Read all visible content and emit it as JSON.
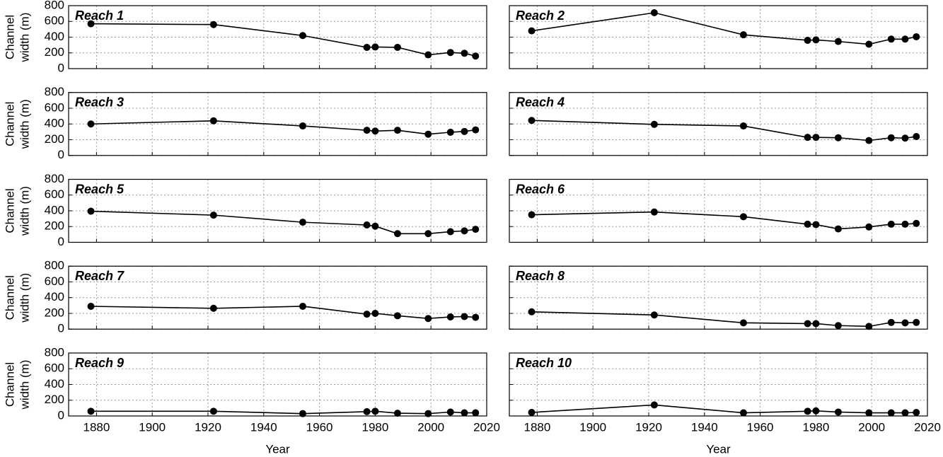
{
  "chart_data": [
    {
      "type": "line",
      "title": "Reach 1",
      "ylabel": [
        "Channel",
        "width (m)"
      ],
      "x": [
        1878,
        1922,
        1954,
        1977,
        1980,
        1988,
        1999,
        2007,
        2012,
        2016
      ],
      "values": [
        570,
        560,
        420,
        270,
        275,
        270,
        175,
        205,
        195,
        160
      ],
      "color": "#000000",
      "xlim": [
        1870,
        2020
      ],
      "ylim": [
        0,
        800
      ],
      "xticks": [
        1880,
        1900,
        1920,
        1940,
        1960,
        1980,
        2000,
        2020
      ],
      "yticks": [
        0,
        200,
        400,
        600,
        800
      ],
      "grid": true
    },
    {
      "type": "line",
      "title": "Reach 2",
      "x": [
        1878,
        1922,
        1954,
        1977,
        1980,
        1988,
        1999,
        2007,
        2012,
        2016
      ],
      "values": [
        480,
        710,
        430,
        360,
        365,
        345,
        310,
        375,
        375,
        405
      ],
      "color": "#000000",
      "xlim": [
        1870,
        2020
      ],
      "ylim": [
        0,
        800
      ],
      "xticks": [
        1880,
        1900,
        1920,
        1940,
        1960,
        1980,
        2000,
        2020
      ],
      "yticks": [
        0,
        200,
        400,
        600,
        800
      ],
      "grid": true
    },
    {
      "type": "line",
      "title": "Reach 3",
      "ylabel": [
        "Channel",
        "width (m)"
      ],
      "x": [
        1878,
        1922,
        1954,
        1977,
        1980,
        1988,
        1999,
        2007,
        2012,
        2016
      ],
      "values": [
        400,
        440,
        375,
        320,
        310,
        320,
        270,
        295,
        305,
        325
      ],
      "color": "#000000",
      "xlim": [
        1870,
        2020
      ],
      "ylim": [
        0,
        800
      ],
      "xticks": [
        1880,
        1900,
        1920,
        1940,
        1960,
        1980,
        2000,
        2020
      ],
      "yticks": [
        0,
        200,
        400,
        600,
        800
      ],
      "grid": true
    },
    {
      "type": "line",
      "title": "Reach 4",
      "x": [
        1878,
        1922,
        1954,
        1977,
        1980,
        1988,
        1999,
        2007,
        2012,
        2016
      ],
      "values": [
        445,
        395,
        375,
        230,
        230,
        225,
        190,
        225,
        220,
        240
      ],
      "color": "#000000",
      "xlim": [
        1870,
        2020
      ],
      "ylim": [
        0,
        800
      ],
      "xticks": [
        1880,
        1900,
        1920,
        1940,
        1960,
        1980,
        2000,
        2020
      ],
      "yticks": [
        0,
        200,
        400,
        600,
        800
      ],
      "grid": true
    },
    {
      "type": "line",
      "title": "Reach 5",
      "ylabel": [
        "Channel",
        "width (m)"
      ],
      "x": [
        1878,
        1922,
        1954,
        1977,
        1980,
        1988,
        1999,
        2007,
        2012,
        2016
      ],
      "values": [
        395,
        345,
        255,
        220,
        205,
        110,
        110,
        135,
        145,
        165
      ],
      "color": "#000000",
      "xlim": [
        1870,
        2020
      ],
      "ylim": [
        0,
        800
      ],
      "xticks": [
        1880,
        1900,
        1920,
        1940,
        1960,
        1980,
        2000,
        2020
      ],
      "yticks": [
        0,
        200,
        400,
        600,
        800
      ],
      "grid": true
    },
    {
      "type": "line",
      "title": "Reach 6",
      "x": [
        1878,
        1922,
        1954,
        1977,
        1980,
        1988,
        1999,
        2007,
        2012,
        2016
      ],
      "values": [
        350,
        385,
        325,
        230,
        225,
        170,
        195,
        230,
        230,
        240
      ],
      "color": "#000000",
      "xlim": [
        1870,
        2020
      ],
      "ylim": [
        0,
        800
      ],
      "xticks": [
        1880,
        1900,
        1920,
        1940,
        1960,
        1980,
        2000,
        2020
      ],
      "yticks": [
        0,
        200,
        400,
        600,
        800
      ],
      "grid": true
    },
    {
      "type": "line",
      "title": "Reach 7",
      "ylabel": [
        "Channel",
        "width (m)"
      ],
      "x": [
        1878,
        1922,
        1954,
        1977,
        1980,
        1988,
        1999,
        2007,
        2012,
        2016
      ],
      "values": [
        290,
        265,
        290,
        190,
        200,
        170,
        135,
        155,
        160,
        150
      ],
      "color": "#000000",
      "xlim": [
        1870,
        2020
      ],
      "ylim": [
        0,
        800
      ],
      "xticks": [
        1880,
        1900,
        1920,
        1940,
        1960,
        1980,
        2000,
        2020
      ],
      "yticks": [
        0,
        200,
        400,
        600,
        800
      ],
      "grid": true
    },
    {
      "type": "line",
      "title": "Reach 8",
      "x": [
        1878,
        1922,
        1954,
        1977,
        1980,
        1988,
        1999,
        2007,
        2012,
        2016
      ],
      "values": [
        220,
        180,
        80,
        70,
        70,
        45,
        35,
        85,
        80,
        85
      ],
      "color": "#000000",
      "xlim": [
        1870,
        2020
      ],
      "ylim": [
        0,
        800
      ],
      "xticks": [
        1880,
        1900,
        1920,
        1940,
        1960,
        1980,
        2000,
        2020
      ],
      "yticks": [
        0,
        200,
        400,
        600,
        800
      ],
      "grid": true
    },
    {
      "type": "line",
      "title": "Reach 9",
      "ylabel": [
        "Channel",
        "width (m)"
      ],
      "xlabel": "Year",
      "x": [
        1878,
        1922,
        1954,
        1977,
        1980,
        1988,
        1999,
        2007,
        2012,
        2016
      ],
      "values": [
        60,
        60,
        30,
        55,
        60,
        35,
        30,
        50,
        40,
        40
      ],
      "color": "#000000",
      "xlim": [
        1870,
        2020
      ],
      "ylim": [
        0,
        800
      ],
      "xticks": [
        1880,
        1900,
        1920,
        1940,
        1960,
        1980,
        2000,
        2020
      ],
      "yticks": [
        0,
        200,
        400,
        600,
        800
      ],
      "grid": true
    },
    {
      "type": "line",
      "title": "Reach 10",
      "xlabel": "Year",
      "x": [
        1878,
        1922,
        1954,
        1977,
        1980,
        1988,
        1999,
        2007,
        2012,
        2016
      ],
      "values": [
        45,
        140,
        40,
        60,
        65,
        50,
        40,
        40,
        40,
        45
      ],
      "color": "#000000",
      "xlim": [
        1870,
        2020
      ],
      "ylim": [
        0,
        800
      ],
      "xticks": [
        1880,
        1900,
        1920,
        1940,
        1960,
        1980,
        2000,
        2020
      ],
      "yticks": [
        0,
        200,
        400,
        600,
        800
      ],
      "grid": true
    }
  ]
}
